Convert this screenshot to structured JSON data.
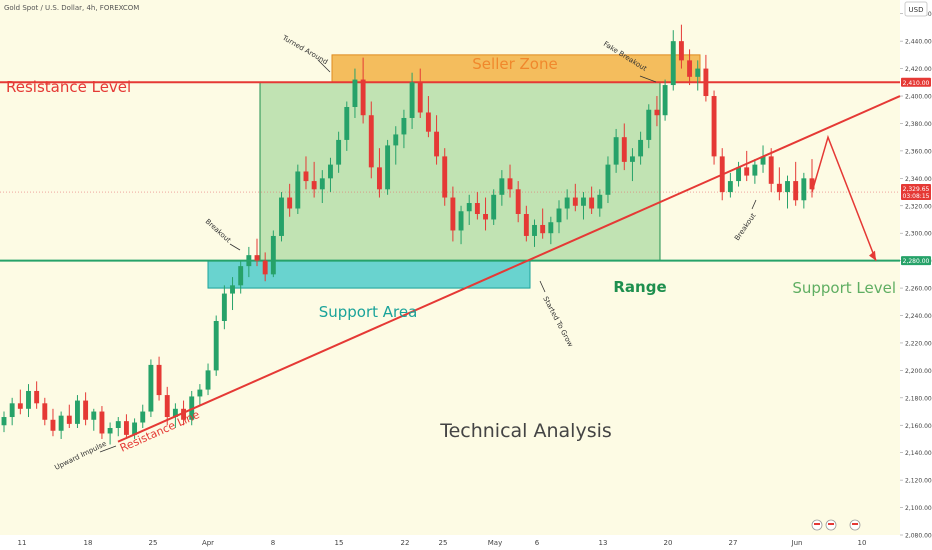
{
  "header": {
    "symbol_title": "Gold Spot / U.S. Dollar, 4h, FOREXCOM",
    "currency_badge": "USD"
  },
  "chart_data": {
    "type": "candlestick",
    "title": "Technical Analysis",
    "ylim": [
      2080,
      2470
    ],
    "y_ticks": [
      2080,
      2100,
      2120,
      2140,
      2160,
      2180,
      2200,
      2220,
      2240,
      2260,
      2280,
      2300,
      2320,
      2340,
      2360,
      2380,
      2400,
      2420,
      2440,
      2460
    ],
    "y_tick_labels": [
      "2,080.00",
      "2,100.00",
      "2,120.00",
      "2,140.00",
      "2,160.00",
      "2,180.00",
      "2,200.00",
      "2,220.00",
      "2,240.00",
      "2,260.00",
      "2,280.00",
      "2,300.00",
      "2,320.00",
      "2,340.00",
      "2,360.00",
      "2,380.00",
      "2,400.00",
      "2,420.00",
      "2,440.00",
      "2,460.00"
    ],
    "x_labels": [
      "11",
      "18",
      "25",
      "Apr",
      "8",
      "15",
      "22",
      "25",
      "May",
      "6",
      "13",
      "20",
      "27",
      "Jun",
      "10"
    ],
    "price_badges": [
      {
        "value": 2410.0,
        "label": "2,410.00",
        "color": "#e53935"
      },
      {
        "value": 2330.0,
        "label": "2,329.65",
        "sublabel": "03:08:15",
        "color": "#e53935"
      },
      {
        "value": 2280.0,
        "label": "2,280.00",
        "color": "#26a269"
      }
    ],
    "levels": {
      "resistance": 2410,
      "support": 2280,
      "current": 2330
    },
    "zones": [
      {
        "name": "Seller Zone",
        "from": 2410,
        "to": 2430,
        "color": "#f0a830"
      },
      {
        "name": "Range",
        "from": 2280,
        "to": 2410,
        "color": "#8fcf8a"
      },
      {
        "name": "Support Area",
        "from": 2260,
        "to": 2280,
        "color": "#44c9c9"
      }
    ],
    "lines": [
      {
        "name": "Resistance Line",
        "from_price": 2148,
        "to_price": 2400,
        "color": "#e53935"
      }
    ],
    "projection": [
      2330,
      2370,
      2280
    ],
    "text_labels": {
      "resistance_level": "Resistance Level",
      "support_level": "Support Level",
      "seller_zone": "Seller Zone",
      "range": "Range",
      "support_area": "Support Area",
      "technical_analysis": "Technical Analysis",
      "resistance_line": "Resistance Line",
      "upward_impulse": "Upward Impulse",
      "breakout_1": "Breakout",
      "turned_around": "Turned Around",
      "fake_breakout": "Fake Breakout",
      "started_to_grow": "Started To Grow",
      "breakout_2": "Breakout"
    },
    "candles": [
      [
        2160,
        2170,
        2155,
        2166
      ],
      [
        2166,
        2180,
        2160,
        2176
      ],
      [
        2176,
        2186,
        2168,
        2172
      ],
      [
        2172,
        2190,
        2166,
        2185
      ],
      [
        2185,
        2192,
        2172,
        2176
      ],
      [
        2176,
        2180,
        2160,
        2164
      ],
      [
        2164,
        2172,
        2152,
        2156
      ],
      [
        2156,
        2170,
        2150,
        2167
      ],
      [
        2167,
        2175,
        2158,
        2161
      ],
      [
        2161,
        2182,
        2158,
        2178
      ],
      [
        2178,
        2184,
        2160,
        2164
      ],
      [
        2164,
        2172,
        2156,
        2170
      ],
      [
        2170,
        2174,
        2150,
        2154
      ],
      [
        2154,
        2162,
        2146,
        2158
      ],
      [
        2158,
        2166,
        2152,
        2163
      ],
      [
        2163,
        2168,
        2150,
        2153
      ],
      [
        2153,
        2165,
        2150,
        2162
      ],
      [
        2162,
        2175,
        2158,
        2170
      ],
      [
        2170,
        2208,
        2166,
        2204
      ],
      [
        2204,
        2210,
        2178,
        2182
      ],
      [
        2182,
        2188,
        2160,
        2166
      ],
      [
        2166,
        2176,
        2158,
        2172
      ],
      [
        2172,
        2178,
        2160,
        2164
      ],
      [
        2164,
        2185,
        2160,
        2181
      ],
      [
        2181,
        2190,
        2174,
        2186
      ],
      [
        2186,
        2205,
        2182,
        2200
      ],
      [
        2200,
        2240,
        2196,
        2236
      ],
      [
        2236,
        2262,
        2230,
        2256
      ],
      [
        2256,
        2268,
        2244,
        2262
      ],
      [
        2262,
        2280,
        2256,
        2276
      ],
      [
        2276,
        2290,
        2268,
        2284
      ],
      [
        2284,
        2296,
        2276,
        2280
      ],
      [
        2280,
        2286,
        2265,
        2270
      ],
      [
        2270,
        2302,
        2268,
        2298
      ],
      [
        2298,
        2330,
        2294,
        2326
      ],
      [
        2326,
        2336,
        2312,
        2318
      ],
      [
        2318,
        2350,
        2314,
        2345
      ],
      [
        2345,
        2356,
        2332,
        2338
      ],
      [
        2338,
        2352,
        2326,
        2332
      ],
      [
        2332,
        2346,
        2322,
        2340
      ],
      [
        2340,
        2355,
        2330,
        2350
      ],
      [
        2350,
        2374,
        2344,
        2368
      ],
      [
        2368,
        2396,
        2360,
        2392
      ],
      [
        2392,
        2420,
        2384,
        2412
      ],
      [
        2412,
        2428,
        2380,
        2386
      ],
      [
        2386,
        2396,
        2340,
        2348
      ],
      [
        2348,
        2362,
        2326,
        2332
      ],
      [
        2332,
        2368,
        2328,
        2364
      ],
      [
        2364,
        2378,
        2350,
        2372
      ],
      [
        2372,
        2390,
        2362,
        2384
      ],
      [
        2384,
        2417,
        2376,
        2410
      ],
      [
        2410,
        2420,
        2384,
        2388
      ],
      [
        2388,
        2400,
        2370,
        2374
      ],
      [
        2374,
        2386,
        2350,
        2356
      ],
      [
        2356,
        2362,
        2320,
        2326
      ],
      [
        2326,
        2334,
        2294,
        2302
      ],
      [
        2302,
        2320,
        2292,
        2316
      ],
      [
        2316,
        2328,
        2306,
        2322
      ],
      [
        2322,
        2330,
        2310,
        2314
      ],
      [
        2314,
        2326,
        2302,
        2310
      ],
      [
        2310,
        2332,
        2306,
        2328
      ],
      [
        2328,
        2346,
        2320,
        2340
      ],
      [
        2340,
        2350,
        2326,
        2332
      ],
      [
        2332,
        2338,
        2308,
        2314
      ],
      [
        2314,
        2320,
        2294,
        2298
      ],
      [
        2298,
        2310,
        2290,
        2306
      ],
      [
        2306,
        2318,
        2296,
        2300
      ],
      [
        2300,
        2312,
        2292,
        2308
      ],
      [
        2308,
        2324,
        2300,
        2318
      ],
      [
        2318,
        2332,
        2310,
        2326
      ],
      [
        2326,
        2336,
        2316,
        2320
      ],
      [
        2320,
        2330,
        2310,
        2326
      ],
      [
        2326,
        2334,
        2314,
        2318
      ],
      [
        2318,
        2332,
        2312,
        2328
      ],
      [
        2328,
        2356,
        2322,
        2350
      ],
      [
        2350,
        2376,
        2344,
        2370
      ],
      [
        2370,
        2380,
        2346,
        2352
      ],
      [
        2352,
        2362,
        2338,
        2356
      ],
      [
        2356,
        2374,
        2350,
        2368
      ],
      [
        2368,
        2394,
        2362,
        2390
      ],
      [
        2390,
        2400,
        2378,
        2386
      ],
      [
        2386,
        2412,
        2382,
        2408
      ],
      [
        2408,
        2448,
        2404,
        2440
      ],
      [
        2440,
        2452,
        2420,
        2426
      ],
      [
        2426,
        2434,
        2408,
        2414
      ],
      [
        2414,
        2426,
        2404,
        2420
      ],
      [
        2420,
        2430,
        2396,
        2400
      ],
      [
        2400,
        2404,
        2350,
        2356
      ],
      [
        2356,
        2362,
        2324,
        2330
      ],
      [
        2330,
        2344,
        2326,
        2338
      ],
      [
        2338,
        2352,
        2334,
        2348
      ],
      [
        2348,
        2360,
        2338,
        2342
      ],
      [
        2342,
        2354,
        2336,
        2350
      ],
      [
        2350,
        2364,
        2344,
        2356
      ],
      [
        2356,
        2362,
        2330,
        2336
      ],
      [
        2336,
        2348,
        2324,
        2330
      ],
      [
        2330,
        2342,
        2318,
        2338
      ],
      [
        2338,
        2352,
        2320,
        2324
      ],
      [
        2324,
        2344,
        2318,
        2340
      ],
      [
        2340,
        2354,
        2326,
        2332
      ]
    ]
  }
}
